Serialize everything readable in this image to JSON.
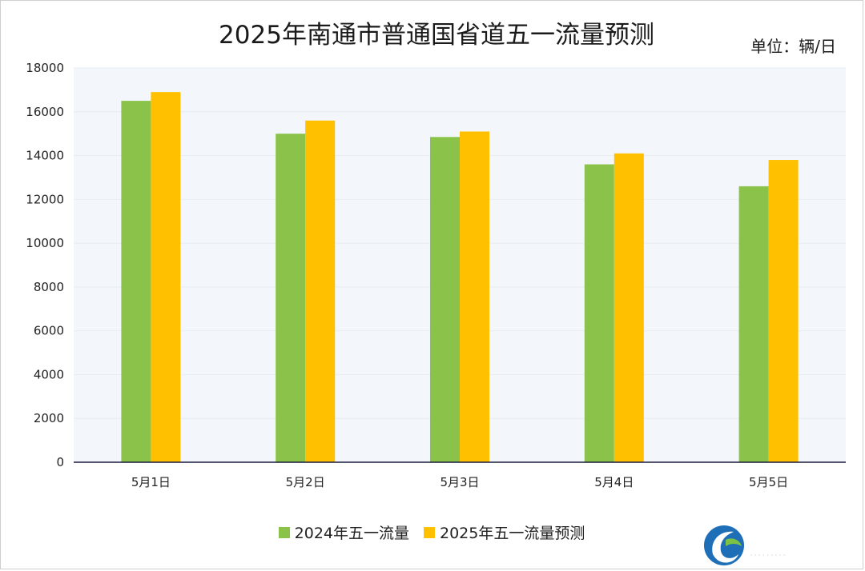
{
  "chart_data": {
    "type": "bar",
    "title": "2025年南通市普通国省道五一流量预测",
    "unit_label": "单位：辆/日",
    "categories": [
      "5月1日",
      "5月2日",
      "5月3日",
      "5月4日",
      "5月5日"
    ],
    "series": [
      {
        "name": "2024年五一流量",
        "color": "#8BC34A",
        "values": [
          16500,
          15000,
          14850,
          13600,
          12600
        ]
      },
      {
        "name": "2025年五一流量预测",
        "color": "#FFC000",
        "values": [
          16900,
          15600,
          15100,
          14100,
          13800
        ]
      }
    ],
    "ylim": [
      0,
      18000
    ],
    "yticks": [
      0,
      2000,
      4000,
      6000,
      8000,
      10000,
      12000,
      14000,
      16000,
      18000
    ],
    "grid": true,
    "legend_position": "bottom",
    "plot_background": "#F3F7FB"
  },
  "logo": {
    "icon": "swirl-logo-icon"
  }
}
